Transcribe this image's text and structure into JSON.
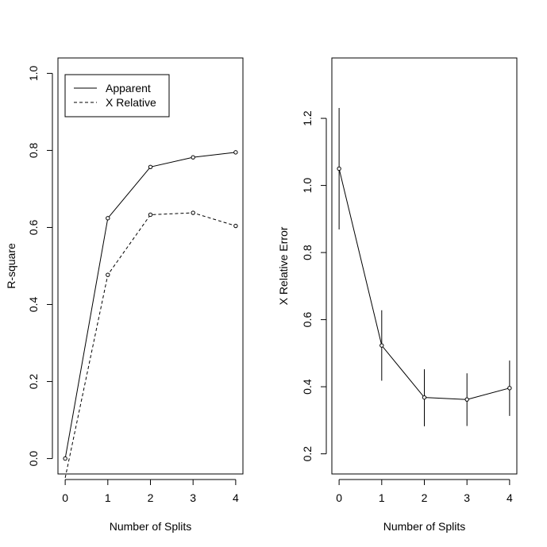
{
  "chart_data": [
    {
      "type": "line",
      "xlabel": "Number of Splits",
      "ylabel": "R-square",
      "x": [
        0,
        1,
        2,
        3,
        4
      ],
      "xticks": [
        "0",
        "1",
        "2",
        "3",
        "4"
      ],
      "xlim": [
        -0.17,
        4.17
      ],
      "ylim": [
        -0.04,
        1.04
      ],
      "yticks": [
        "0.0",
        "0.2",
        "0.4",
        "0.6",
        "0.8",
        "1.0"
      ],
      "grid": false,
      "legend": "top-left",
      "series": [
        {
          "name": "Apparent",
          "line_style": "solid",
          "values": [
            0.0,
            0.624,
            0.757,
            0.782,
            0.795
          ]
        },
        {
          "name": "X Relative",
          "line_style": "dashed",
          "values": [
            -0.05,
            0.477,
            0.633,
            0.638,
            0.604
          ]
        }
      ]
    },
    {
      "type": "line",
      "xlabel": "Number of Splits",
      "ylabel": "X Relative Error",
      "x": [
        0,
        1,
        2,
        3,
        4
      ],
      "xticks": [
        "0",
        "1",
        "2",
        "3",
        "4"
      ],
      "xlim": [
        -0.17,
        4.17
      ],
      "ylim": [
        0.14,
        1.38
      ],
      "yticks": [
        "0.2",
        "0.4",
        "0.6",
        "0.8",
        "1.0",
        "1.2"
      ],
      "grid": false,
      "series": [
        {
          "values": [
            1.05,
            0.523,
            0.368,
            0.362,
            0.396
          ],
          "err_low": [
            0.869,
            0.418,
            0.282,
            0.283,
            0.313
          ],
          "err_high": [
            1.231,
            0.628,
            0.452,
            0.44,
            0.478
          ]
        }
      ]
    }
  ]
}
